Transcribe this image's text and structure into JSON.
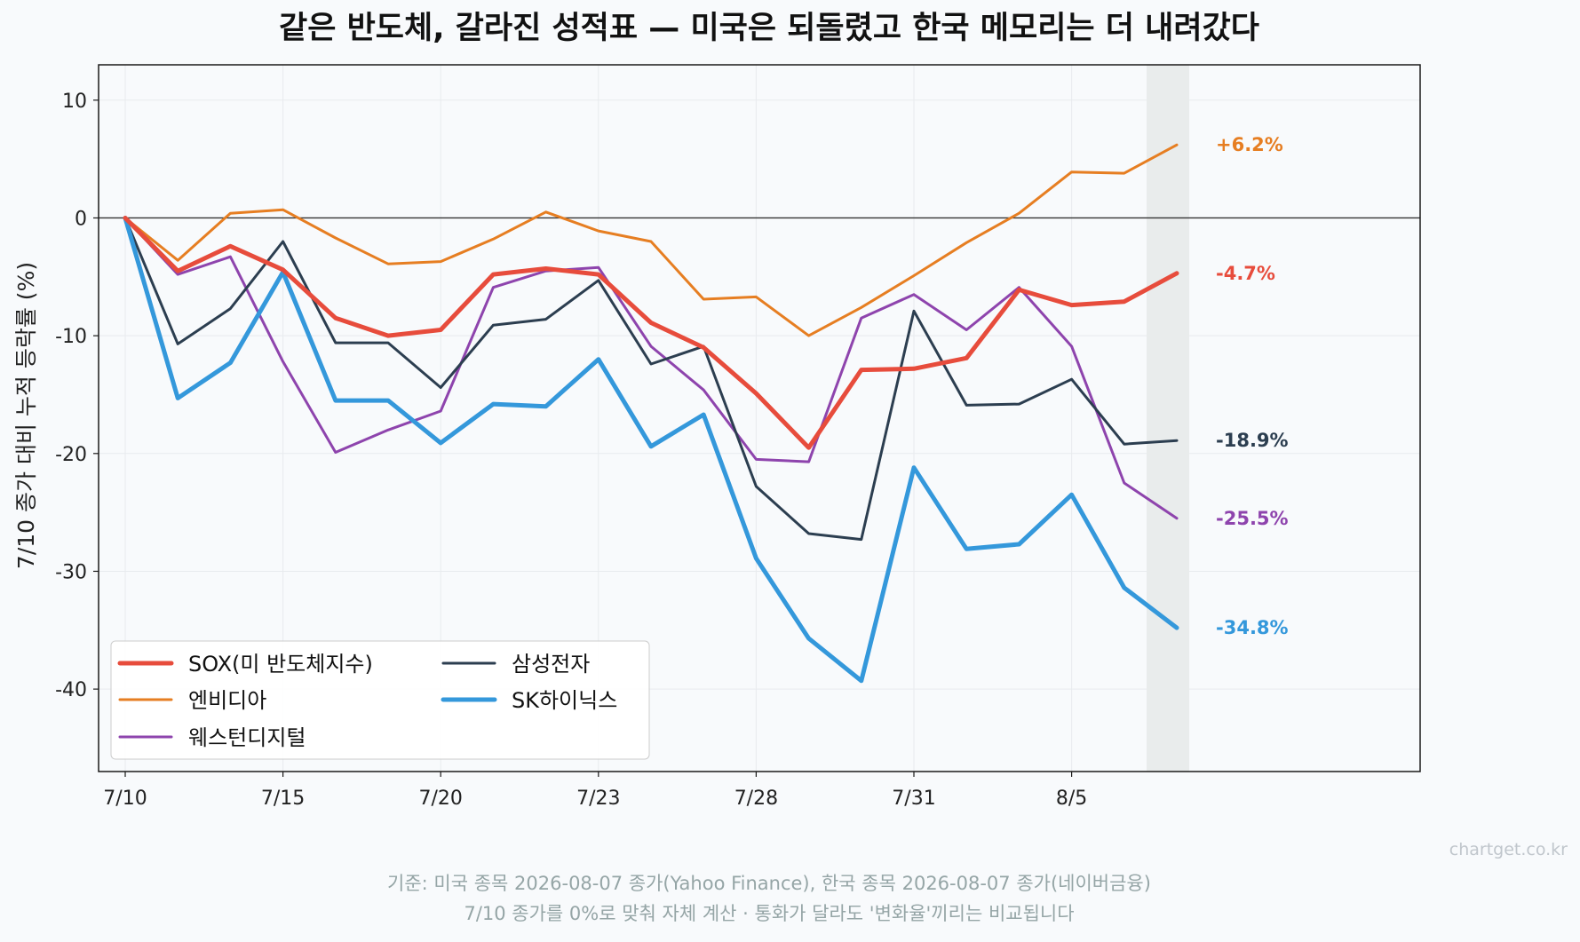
{
  "chart_data": {
    "type": "line",
    "title": "같은 반도체, 갈라진 성적표 — 미국은 되돌렸고 한국 메모리는 더 내려갔다",
    "xlabel": "",
    "ylabel": "7/10 종가 대비 누적 등락률 (%)",
    "x": [
      "7/10",
      "7/13",
      "7/14",
      "7/15",
      "7/16",
      "7/17",
      "7/20",
      "7/21",
      "7/22",
      "7/23",
      "7/24",
      "7/27",
      "7/28",
      "7/29",
      "7/30",
      "7/31",
      "8/3",
      "8/4",
      "8/5",
      "8/6",
      "8/7"
    ],
    "xticks": [
      "7/10",
      "7/15",
      "7/20",
      "7/23",
      "7/28",
      "7/31",
      "8/5"
    ],
    "yticks": [
      10,
      0,
      -10,
      -20,
      -30,
      -40
    ],
    "ytick_labels": [
      "10",
      "0",
      "-10",
      "-20",
      "-30",
      "-40"
    ],
    "ylim": [
      -47,
      13
    ],
    "grid": true,
    "zero_line": true,
    "highlight_last_date": "8/7",
    "legend_position": "lower-left",
    "series": [
      {
        "name": "SOX(미 반도체지수)",
        "color": "#e74c3c",
        "width": 5,
        "values": [
          0,
          -4.5,
          -2.4,
          -4.4,
          -8.5,
          -10.0,
          -9.5,
          -4.8,
          -4.3,
          -4.8,
          -8.9,
          -11.0,
          -14.9,
          -19.5,
          -12.9,
          -12.8,
          -11.9,
          -6.1,
          -7.4,
          -7.1,
          -4.7
        ],
        "end_label": "-4.7%"
      },
      {
        "name": "엔비디아",
        "color": "#e67e22",
        "width": 3,
        "values": [
          0,
          -3.6,
          0.4,
          0.7,
          -1.7,
          -3.9,
          -3.7,
          -1.8,
          0.5,
          -1.1,
          -2.0,
          -6.9,
          -6.7,
          -10.0,
          -7.6,
          -4.9,
          -2.1,
          0.4,
          3.9,
          3.8,
          6.2
        ],
        "end_label": "+6.2%"
      },
      {
        "name": "웨스턴디지털",
        "color": "#8e44ad",
        "width": 3,
        "values": [
          0,
          -4.8,
          -3.3,
          -12.2,
          -19.9,
          -18.0,
          -16.4,
          -5.9,
          -4.5,
          -4.2,
          -10.9,
          -14.6,
          -20.5,
          -20.7,
          -8.5,
          -6.5,
          -9.5,
          -5.9,
          -10.9,
          -22.5,
          -25.5
        ],
        "end_label": "-25.5%"
      },
      {
        "name": "삼성전자",
        "color": "#2c3e50",
        "width": 3,
        "values": [
          0,
          -10.7,
          -7.7,
          -2.0,
          -10.6,
          -10.6,
          -14.4,
          -9.1,
          -8.6,
          -5.3,
          -12.4,
          -10.9,
          -22.8,
          -26.8,
          -27.3,
          -7.9,
          -15.9,
          -15.8,
          -13.7,
          -19.2,
          -18.9
        ],
        "end_label": "-18.9%"
      },
      {
        "name": "SK하이닉스",
        "color": "#3498db",
        "width": 5,
        "values": [
          0,
          -15.3,
          -12.3,
          -4.6,
          -15.5,
          -15.5,
          -19.1,
          -15.8,
          -16.0,
          -12.0,
          -19.4,
          -16.7,
          -28.9,
          -35.7,
          -39.3,
          -21.2,
          -28.1,
          -27.7,
          -23.5,
          -31.4,
          -34.8
        ],
        "end_label": "-34.8%"
      }
    ],
    "legend_order": [
      "SOX(미 반도체지수)",
      "엔비디아",
      "웨스턴디지털",
      "삼성전자",
      "SK하이닉스"
    ]
  },
  "footer": {
    "line1": "기준: 미국 종목 2026-08-07 종가(Yahoo Finance), 한국 종목 2026-08-07 종가(네이버금융)",
    "line2": "7/10 종가를 0%로 맞춰 자체 계산 · 통화가 달라도 '변화율'끼리는 비교됩니다"
  },
  "watermark": "chartget.co.kr",
  "colors": {
    "background": "#f8fafc",
    "highlight_band": "#e9ecec",
    "grid": "#e8ebee",
    "axis": "#1a1a1a"
  }
}
